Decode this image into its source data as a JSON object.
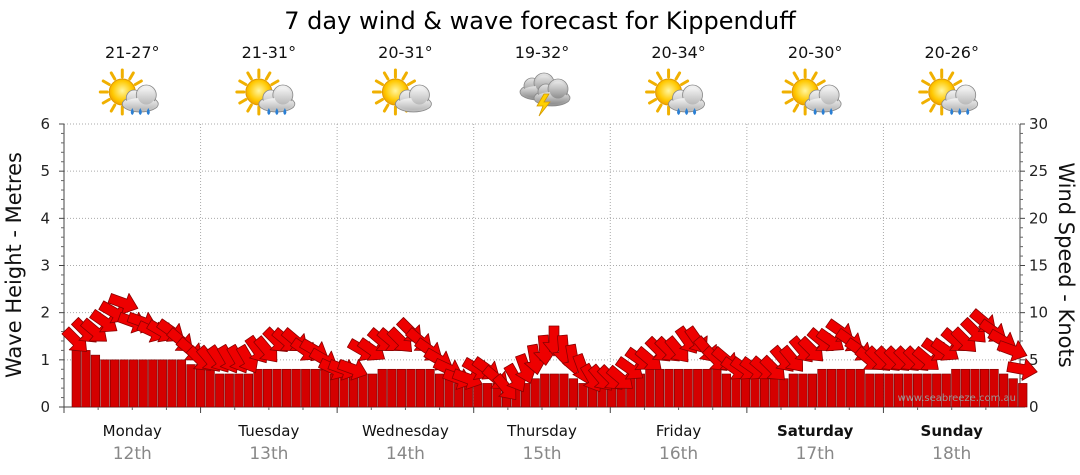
{
  "chart_data": {
    "type": "line",
    "title": "7 day wind & wave forecast for Kippenduff",
    "ylabel_left": "Wave Height - Metres",
    "ylabel_right": "Wind Speed - Knots",
    "ylim_left": [
      0,
      6
    ],
    "ylim_right": [
      0,
      30
    ],
    "yticks_left": [
      "0",
      "1",
      "2",
      "3",
      "4",
      "5",
      "6"
    ],
    "yticks_right": [
      "0",
      "5",
      "10",
      "15",
      "20",
      "25",
      "30"
    ],
    "grid": true,
    "watermark": "www.seabreeze.com.au",
    "days": [
      {
        "name": "Monday",
        "date": "12th",
        "temp": "21-27°",
        "icon": "sun-cloud-rain-icon",
        "bold": false
      },
      {
        "name": "Tuesday",
        "date": "13th",
        "temp": "21-31°",
        "icon": "sun-cloud-rain-icon",
        "bold": false
      },
      {
        "name": "Wednesday",
        "date": "14th",
        "temp": "20-31°",
        "icon": "sun-cloud-icon",
        "bold": false
      },
      {
        "name": "Thursday",
        "date": "15th",
        "temp": "19-32°",
        "icon": "thunderstorm-icon",
        "bold": false
      },
      {
        "name": "Friday",
        "date": "16th",
        "temp": "20-34°",
        "icon": "sun-cloud-rain-icon",
        "bold": false
      },
      {
        "name": "Saturday",
        "date": "17th",
        "temp": "20-30°",
        "icon": "sun-cloud-rain-icon",
        "bold": true
      },
      {
        "name": "Sunday",
        "date": "18th",
        "temp": "20-26°",
        "icon": "sun-cloud-rain-icon",
        "bold": true
      }
    ],
    "series": [
      {
        "values_knots": [
          7,
          8,
          8,
          9,
          10,
          11,
          9,
          9,
          8,
          8,
          8,
          7,
          6,
          5,
          5,
          5,
          5,
          5,
          5,
          6,
          6,
          7,
          7,
          7,
          6,
          6,
          5,
          4,
          4,
          4,
          6,
          6,
          7,
          7,
          7,
          8,
          7,
          6,
          5,
          4,
          3,
          3,
          4,
          4,
          3,
          2,
          3,
          4,
          5,
          6,
          7,
          6,
          5,
          4,
          3,
          3,
          3,
          3,
          4,
          5,
          5,
          6,
          6,
          6,
          7,
          7,
          6,
          5,
          5,
          4,
          4,
          4,
          4,
          4,
          5,
          5,
          6,
          6,
          7,
          7,
          8,
          7,
          6,
          5,
          5,
          5,
          5,
          5,
          5,
          5,
          6,
          6,
          7,
          7,
          8,
          9,
          8,
          7,
          6,
          4
        ],
        "values_wave_m": [
          1.2,
          1.2,
          1.1,
          1.0,
          1.0,
          1.0,
          1.0,
          1.0,
          1.0,
          1.0,
          1.0,
          1.0,
          0.9,
          0.9,
          0.8,
          0.7,
          0.7,
          0.7,
          0.7,
          0.8,
          0.8,
          0.8,
          0.8,
          0.8,
          0.8,
          0.8,
          0.8,
          0.7,
          0.7,
          0.7,
          0.7,
          0.7,
          0.8,
          0.8,
          0.8,
          0.8,
          0.8,
          0.8,
          0.7,
          0.6,
          0.5,
          0.5,
          0.5,
          0.5,
          0.5,
          0.4,
          0.4,
          0.5,
          0.6,
          0.7,
          0.7,
          0.7,
          0.6,
          0.5,
          0.5,
          0.5,
          0.5,
          0.5,
          0.6,
          0.7,
          0.8,
          0.8,
          0.8,
          0.8,
          0.8,
          0.8,
          0.8,
          0.8,
          0.7,
          0.6,
          0.6,
          0.6,
          0.6,
          0.6,
          0.6,
          0.7,
          0.7,
          0.7,
          0.8,
          0.8,
          0.8,
          0.8,
          0.8,
          0.7,
          0.7,
          0.7,
          0.7,
          0.7,
          0.7,
          0.7,
          0.7,
          0.7,
          0.8,
          0.8,
          0.8,
          0.8,
          0.8,
          0.7,
          0.6,
          0.5
        ],
        "directions_deg": [
          225,
          225,
          220,
          215,
          210,
          200,
          200,
          200,
          205,
          210,
          215,
          220,
          220,
          225,
          230,
          235,
          240,
          240,
          240,
          235,
          230,
          225,
          220,
          220,
          215,
          210,
          210,
          205,
          200,
          200,
          210,
          215,
          220,
          220,
          225,
          225,
          220,
          215,
          210,
          205,
          200,
          200,
          210,
          215,
          220,
          230,
          240,
          250,
          260,
          265,
          270,
          265,
          260,
          250,
          240,
          230,
          225,
          220,
          215,
          215,
          220,
          225,
          225,
          230,
          235,
          235,
          230,
          225,
          220,
          215,
          215,
          215,
          220,
          225,
          230,
          230,
          230,
          225,
          220,
          215,
          215,
          215,
          215,
          220,
          225,
          225,
          225,
          225,
          225,
          220,
          215,
          215,
          220,
          225,
          225,
          220,
          215,
          210,
          200,
          190
        ]
      }
    ]
  }
}
